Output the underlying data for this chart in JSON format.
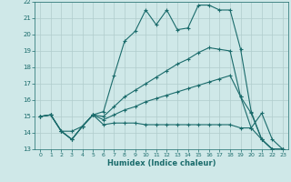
{
  "xlabel": "Humidex (Indice chaleur)",
  "background_color": "#cfe8e8",
  "grid_color": "#b0cccc",
  "line_color": "#1a6b6b",
  "xlim": [
    -0.5,
    23.5
  ],
  "ylim": [
    13,
    22
  ],
  "xticks": [
    0,
    1,
    2,
    3,
    4,
    5,
    6,
    7,
    8,
    9,
    10,
    11,
    12,
    13,
    14,
    15,
    16,
    17,
    18,
    19,
    20,
    21,
    22,
    23
  ],
  "yticks": [
    13,
    14,
    15,
    16,
    17,
    18,
    19,
    20,
    21,
    22
  ],
  "line1_x": [
    0,
    1,
    2,
    3,
    4,
    5,
    6,
    7,
    8,
    9,
    10,
    11,
    12,
    13,
    14,
    15,
    16,
    17,
    18,
    19,
    20,
    21,
    22,
    23
  ],
  "line1_y": [
    15.0,
    15.1,
    14.1,
    14.1,
    14.4,
    15.1,
    15.3,
    17.5,
    19.6,
    20.2,
    21.5,
    20.6,
    21.5,
    20.3,
    20.4,
    21.8,
    21.8,
    21.5,
    21.5,
    19.1,
    15.3,
    13.6,
    13.0,
    13.0
  ],
  "line2_x": [
    0,
    1,
    2,
    3,
    4,
    5,
    6,
    7,
    8,
    9,
    10,
    11,
    12,
    13,
    14,
    15,
    16,
    17,
    18,
    19,
    20,
    21,
    22,
    23
  ],
  "line2_y": [
    15.0,
    15.1,
    14.1,
    13.6,
    14.4,
    15.1,
    14.5,
    14.6,
    14.6,
    14.6,
    14.5,
    14.5,
    14.5,
    14.5,
    14.5,
    14.5,
    14.5,
    14.5,
    14.5,
    14.3,
    14.3,
    15.2,
    13.6,
    13.0
  ],
  "line3_x": [
    0,
    1,
    2,
    3,
    4,
    5,
    6,
    7,
    8,
    9,
    10,
    11,
    12,
    13,
    14,
    15,
    16,
    17,
    18,
    19,
    20,
    21,
    22,
    23
  ],
  "line3_y": [
    15.0,
    15.1,
    14.1,
    13.6,
    14.4,
    15.1,
    14.8,
    15.1,
    15.4,
    15.6,
    15.9,
    16.1,
    16.3,
    16.5,
    16.7,
    16.9,
    17.1,
    17.3,
    17.5,
    16.2,
    15.2,
    13.6,
    13.0,
    13.0
  ],
  "line4_x": [
    0,
    1,
    2,
    3,
    4,
    5,
    6,
    7,
    8,
    9,
    10,
    11,
    12,
    13,
    14,
    15,
    16,
    17,
    18,
    19,
    20,
    21,
    22,
    23
  ],
  "line4_y": [
    15.0,
    15.1,
    14.1,
    13.6,
    14.4,
    15.1,
    15.0,
    15.6,
    16.2,
    16.6,
    17.0,
    17.4,
    17.8,
    18.2,
    18.5,
    18.9,
    19.2,
    19.1,
    19.0,
    16.2,
    14.3,
    13.6,
    13.0,
    13.0
  ]
}
